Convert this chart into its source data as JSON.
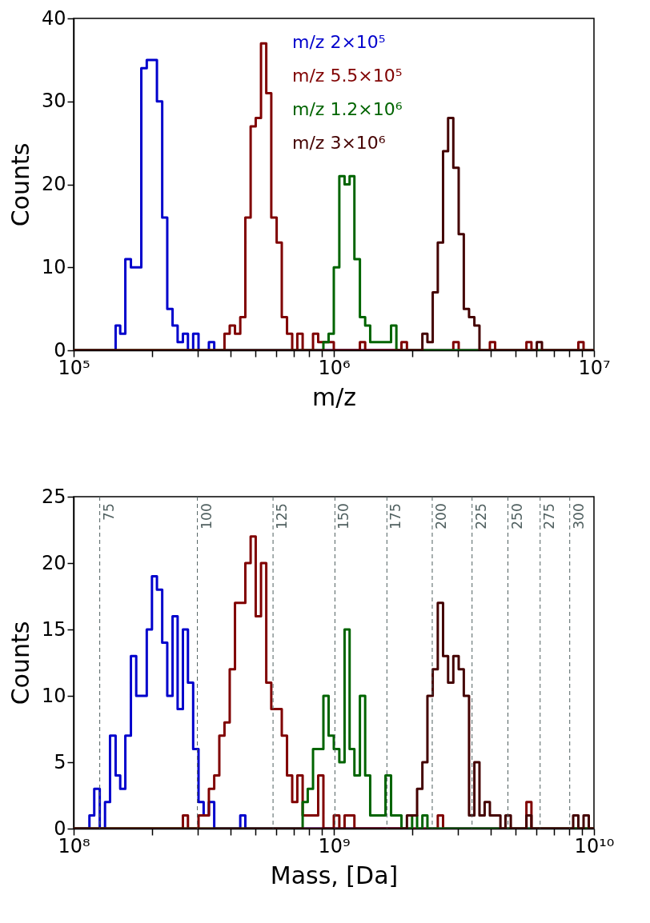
{
  "chart_data": [
    {
      "type": "step",
      "xlabel": "m/z",
      "ylabel": "Counts",
      "log": "x",
      "legend": "top",
      "xlim": [
        100000.0,
        10000000.0
      ],
      "ylim": [
        0,
        40
      ],
      "yticks": [
        0,
        10,
        20,
        30,
        40
      ],
      "xticks": [
        {
          "value": 100000.0,
          "label": "10⁵"
        },
        {
          "value": 200000.0,
          "label": null
        },
        {
          "value": 300000.0,
          "label": null
        },
        {
          "value": 400000.0,
          "label": null
        },
        {
          "value": 500000.0,
          "label": null
        },
        {
          "value": 600000.0,
          "label": null
        },
        {
          "value": 700000.0,
          "label": null
        },
        {
          "value": 800000.0,
          "label": null
        },
        {
          "value": 900000.0,
          "label": null
        },
        {
          "value": 1000000.0,
          "label": "10⁶"
        },
        {
          "value": 2000000.0,
          "label": null
        },
        {
          "value": 3000000.0,
          "label": null
        },
        {
          "value": 4000000.0,
          "label": null
        },
        {
          "value": 5000000.0,
          "label": null
        },
        {
          "value": 6000000.0,
          "label": null
        },
        {
          "value": 7000000.0,
          "label": null
        },
        {
          "value": 8000000.0,
          "label": null
        },
        {
          "value": 9000000.0,
          "label": null
        },
        {
          "value": 10000000.0,
          "label": "10⁷"
        }
      ],
      "series": [
        {
          "name": "m/z 2×10⁵",
          "color": "#0000cc",
          "x": [
            100000.0,
            145000.0,
            151000.0,
            158000.0,
            166000.0,
            174000.0,
            182000.0,
            191000.0,
            200000.0,
            209000.0,
            219000.0,
            229000.0,
            240000.0,
            251000.0,
            263000.0,
            275000.0,
            288000.0,
            302000.0,
            316000.0,
            331000.0,
            347000.0,
            10000000.0
          ],
          "values": [
            0,
            3,
            2,
            11,
            10,
            10,
            34,
            35,
            35,
            30,
            16,
            5,
            3,
            1,
            2,
            0,
            2,
            0,
            0,
            1,
            0,
            0
          ]
        },
        {
          "name": "m/z 5.5×10⁵",
          "color": "#800000",
          "x": [
            100000.0,
            380000.0,
            398000.0,
            417000.0,
            437000.0,
            457000.0,
            479000.0,
            501000.0,
            525000.0,
            550000.0,
            575000.0,
            603000.0,
            631000.0,
            661000.0,
            692000.0,
            724000.0,
            759000.0,
            794000.0,
            832000.0,
            871000.0,
            912000.0,
            955000.0,
            1000000.0,
            1260000.0,
            1320000.0,
            1820000.0,
            1910000.0,
            2880000.0,
            3020000.0,
            3980000.0,
            4170000.0,
            5500000.0,
            5750000.0,
            8710000.0,
            9120000.0,
            10000000.0
          ],
          "values": [
            0,
            2,
            3,
            2,
            4,
            16,
            27,
            28,
            37,
            31,
            16,
            13,
            4,
            2,
            0,
            2,
            0,
            0,
            2,
            1,
            1,
            1,
            0,
            1,
            0,
            1,
            0,
            1,
            0,
            1,
            0,
            1,
            0,
            1,
            0,
            0
          ]
        },
        {
          "name": "m/z 1.2×10⁶",
          "color": "#006400",
          "x": [
            100000.0,
            912000.0,
            955000.0,
            1000000.0,
            1050000.0,
            1100000.0,
            1150000.0,
            1200000.0,
            1260000.0,
            1320000.0,
            1380000.0,
            1450000.0,
            1510000.0,
            1580000.0,
            1660000.0,
            1740000.0,
            10000000.0
          ],
          "values": [
            0,
            1,
            2,
            10,
            21,
            20,
            21,
            11,
            4,
            3,
            1,
            1,
            1,
            1,
            3,
            0,
            0
          ]
        },
        {
          "name": "m/z 3×10⁶",
          "color": "#440000",
          "x": [
            100000.0,
            2190000.0,
            2290000.0,
            2400000.0,
            2510000.0,
            2630000.0,
            2750000.0,
            2880000.0,
            3020000.0,
            3160000.0,
            3310000.0,
            3470000.0,
            3630000.0,
            6030000.0,
            6310000.0,
            10000000.0
          ],
          "values": [
            0,
            2,
            1,
            7,
            13,
            24,
            28,
            22,
            14,
            5,
            4,
            3,
            0,
            1,
            0,
            0
          ]
        }
      ]
    },
    {
      "type": "step",
      "xlabel": "Mass, [Da]",
      "ylabel": "Counts",
      "log": "x",
      "xlim": [
        100000000.0,
        10000000000.0
      ],
      "ylim": [
        0,
        25
      ],
      "yticks": [
        0,
        5,
        10,
        15,
        20,
        25
      ],
      "xticks": [
        {
          "value": 100000000.0,
          "label": "10⁸"
        },
        {
          "value": 200000000.0,
          "label": null
        },
        {
          "value": 300000000.0,
          "label": null
        },
        {
          "value": 400000000.0,
          "label": null
        },
        {
          "value": 500000000.0,
          "label": null
        },
        {
          "value": 600000000.0,
          "label": null
        },
        {
          "value": 700000000.0,
          "label": null
        },
        {
          "value": 800000000.0,
          "label": null
        },
        {
          "value": 900000000.0,
          "label": null
        },
        {
          "value": 1000000000.0,
          "label": "10⁹"
        },
        {
          "value": 2000000000.0,
          "label": null
        },
        {
          "value": 3000000000.0,
          "label": null
        },
        {
          "value": 4000000000.0,
          "label": null
        },
        {
          "value": 5000000000.0,
          "label": null
        },
        {
          "value": 6000000000.0,
          "label": null
        },
        {
          "value": 7000000000.0,
          "label": null
        },
        {
          "value": 8000000000.0,
          "label": null
        },
        {
          "value": 9000000000.0,
          "label": null
        },
        {
          "value": 10000000000.0,
          "label": "10¹⁰"
        }
      ],
      "ref_lines": [
        {
          "axis": "x",
          "value": 126000000.0,
          "color": "#4f5f5f",
          "line_style": "dashed"
        },
        {
          "axis": "x",
          "value": 299000000.0,
          "color": "#4f5f5f",
          "line_style": "dashed"
        },
        {
          "axis": "x",
          "value": 584000000.0,
          "color": "#4f5f5f",
          "line_style": "dashed"
        },
        {
          "axis": "x",
          "value": 1010000000.0,
          "color": "#4f5f5f",
          "line_style": "dashed"
        },
        {
          "axis": "x",
          "value": 1600000000.0,
          "color": "#4f5f5f",
          "line_style": "dashed"
        },
        {
          "axis": "x",
          "value": 2390000000.0,
          "color": "#4f5f5f",
          "line_style": "dashed"
        },
        {
          "axis": "x",
          "value": 3400000000.0,
          "color": "#4f5f5f",
          "line_style": "dashed"
        },
        {
          "axis": "x",
          "value": 4670000000.0,
          "color": "#4f5f5f",
          "line_style": "dashed"
        },
        {
          "axis": "x",
          "value": 6210000000.0,
          "color": "#4f5f5f",
          "line_style": "dashed"
        },
        {
          "axis": "x",
          "value": 8070000000.0,
          "color": "#4f5f5f",
          "line_style": "dashed"
        }
      ],
      "annotations": [
        {
          "text": "75",
          "x": 126000000.0,
          "y": 24.5
        },
        {
          "text": "100",
          "x": 299000000.0,
          "y": 24.5
        },
        {
          "text": "125",
          "x": 584000000.0,
          "y": 24.5
        },
        {
          "text": "150",
          "x": 1010000000.0,
          "y": 24.5
        },
        {
          "text": "175",
          "x": 1600000000.0,
          "y": 24.5
        },
        {
          "text": "200",
          "x": 2390000000.0,
          "y": 24.5
        },
        {
          "text": "225",
          "x": 3400000000.0,
          "y": 24.5
        },
        {
          "text": "250",
          "x": 4670000000.0,
          "y": 24.5
        },
        {
          "text": "275",
          "x": 6210000000.0,
          "y": 24.5
        },
        {
          "text": "300",
          "x": 8070000000.0,
          "y": 24.5
        }
      ],
      "series": [
        {
          "color": "#0000cc",
          "x": [
            100000000.0,
            115000000.0,
            120000000.0,
            126000000.0,
            132000000.0,
            138000000.0,
            145000000.0,
            151000000.0,
            158000000.0,
            166000000.0,
            174000000.0,
            182000000.0,
            191000000.0,
            200000000.0,
            209000000.0,
            219000000.0,
            229000000.0,
            240000000.0,
            251000000.0,
            263000000.0,
            275000000.0,
            288000000.0,
            302000000.0,
            316000000.0,
            331000000.0,
            347000000.0,
            437000000.0,
            457000000.0,
            10000000000.0
          ],
          "values": [
            0,
            1,
            3,
            0,
            2,
            7,
            4,
            3,
            7,
            13,
            10,
            10,
            15,
            19,
            18,
            14,
            10,
            16,
            9,
            15,
            11,
            6,
            2,
            1,
            2,
            0,
            1,
            0,
            0
          ]
        },
        {
          "color": "#800000",
          "x": [
            100000000.0,
            263000000.0,
            275000000.0,
            288000000.0,
            302000000.0,
            316000000.0,
            331000000.0,
            347000000.0,
            363000000.0,
            380000000.0,
            398000000.0,
            417000000.0,
            437000000.0,
            457000000.0,
            479000000.0,
            501000000.0,
            525000000.0,
            550000000.0,
            575000000.0,
            603000000.0,
            631000000.0,
            661000000.0,
            692000000.0,
            724000000.0,
            759000000.0,
            794000000.0,
            832000000.0,
            871000000.0,
            912000000.0,
            1000000000.0,
            1050000000.0,
            1100000000.0,
            1150000000.0,
            1200000000.0,
            2510000000.0,
            2630000000.0,
            5500000000.0,
            5750000000.0,
            10000000000.0
          ],
          "values": [
            0,
            1,
            0,
            0,
            1,
            1,
            3,
            4,
            7,
            8,
            12,
            17,
            17,
            20,
            22,
            16,
            20,
            11,
            9,
            9,
            7,
            4,
            2,
            4,
            1,
            1,
            1,
            4,
            0,
            1,
            0,
            1,
            1,
            0,
            1,
            0,
            2,
            0,
            0
          ]
        },
        {
          "color": "#006400",
          "x": [
            100000000.0,
            759000000.0,
            794000000.0,
            832000000.0,
            871000000.0,
            912000000.0,
            955000000.0,
            1000000000.0,
            1050000000.0,
            1100000000.0,
            1150000000.0,
            1200000000.0,
            1260000000.0,
            1320000000.0,
            1380000000.0,
            1450000000.0,
            1510000000.0,
            1580000000.0,
            1660000000.0,
            1740000000.0,
            1820000000.0,
            2000000000.0,
            2090000000.0,
            2190000000.0,
            2290000000.0,
            10000000000.0
          ],
          "values": [
            0,
            2,
            3,
            6,
            6,
            10,
            7,
            6,
            5,
            15,
            6,
            4,
            10,
            4,
            1,
            1,
            1,
            4,
            1,
            1,
            0,
            1,
            0,
            1,
            0,
            0
          ]
        },
        {
          "color": "#440000",
          "x": [
            100000000.0,
            1910000000.0,
            2000000000.0,
            2090000000.0,
            2190000000.0,
            2290000000.0,
            2400000000.0,
            2510000000.0,
            2630000000.0,
            2750000000.0,
            2880000000.0,
            3020000000.0,
            3160000000.0,
            3310000000.0,
            3470000000.0,
            3630000000.0,
            3800000000.0,
            3980000000.0,
            4170000000.0,
            4370000000.0,
            4570000000.0,
            4790000000.0,
            5500000000.0,
            5750000000.0,
            8320000000.0,
            8710000000.0,
            9120000000.0,
            9550000000.0,
            10000000000.0
          ],
          "values": [
            0,
            1,
            1,
            3,
            5,
            10,
            12,
            17,
            13,
            11,
            13,
            12,
            10,
            1,
            5,
            1,
            2,
            1,
            1,
            0,
            1,
            0,
            1,
            0,
            1,
            0,
            1,
            0,
            0
          ]
        }
      ]
    }
  ]
}
